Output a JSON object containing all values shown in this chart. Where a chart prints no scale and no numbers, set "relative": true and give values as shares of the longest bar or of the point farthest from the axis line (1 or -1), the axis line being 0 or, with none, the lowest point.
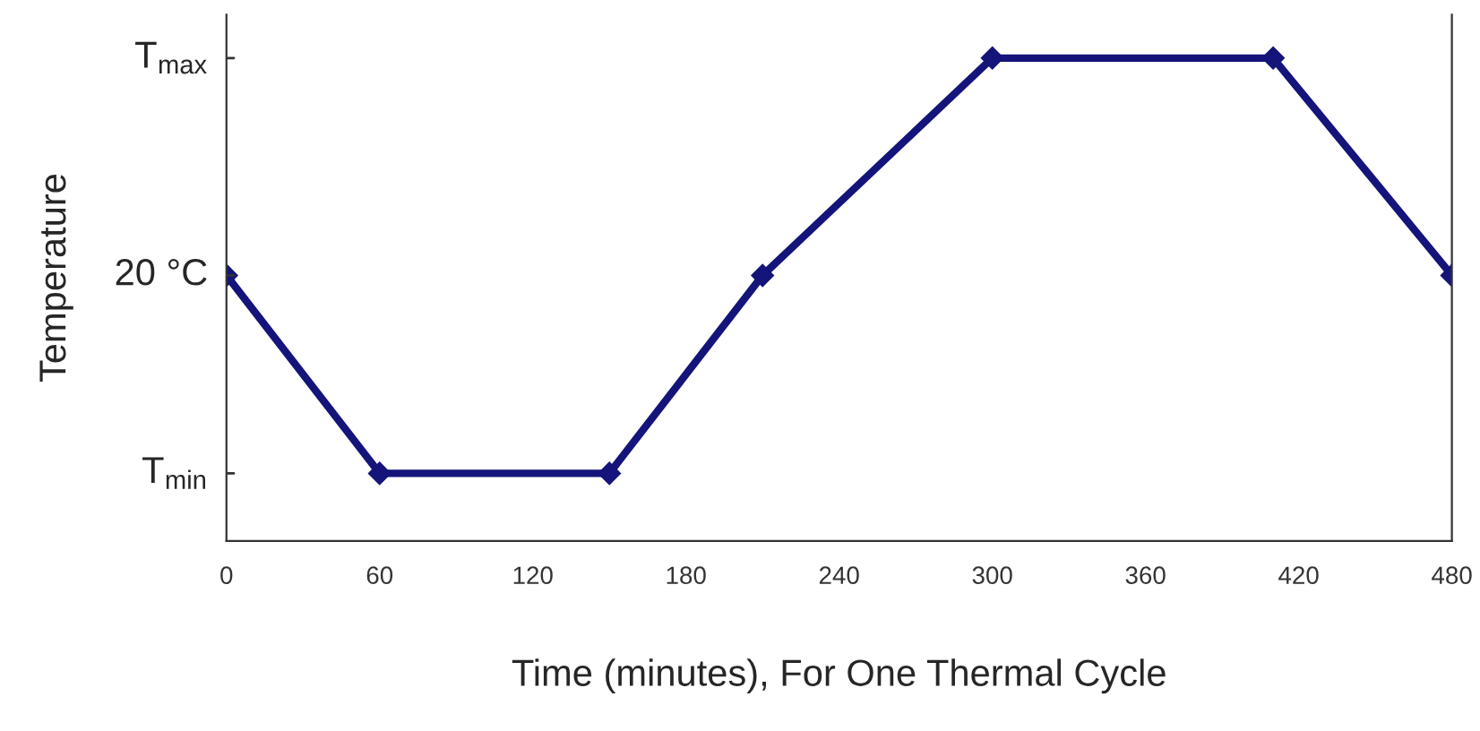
{
  "chart_data": {
    "type": "line",
    "relative": true,
    "xlabel": "Time (minutes), For One Thermal Cycle",
    "ylabel": "Temperature",
    "x": [
      0,
      60,
      150,
      210,
      300,
      410,
      480
    ],
    "series": [
      {
        "color": "#14147a",
        "values": [
          0.55,
          0.14,
          0.14,
          0.55,
          1,
          1,
          0.55
        ]
      }
    ],
    "xlim": [
      0,
      480
    ],
    "xticks": [
      0,
      60,
      120,
      180,
      240,
      300,
      360,
      420,
      480
    ],
    "ref_lines": [
      {
        "axis": "y",
        "value": 0.14,
        "label": "T$_{min}$"
      },
      {
        "axis": "y",
        "value": 0.55,
        "label": "20 °C"
      },
      {
        "axis": "y",
        "value": 1,
        "label": "T$_{max}$"
      }
    ],
    "marker": "diamond",
    "line_style": "solid",
    "grid": false,
    "legend": false
  }
}
